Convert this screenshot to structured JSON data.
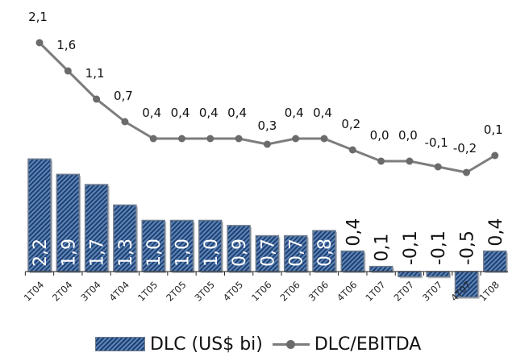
{
  "chart_data": {
    "type": "bar+line",
    "categories": [
      "1T04",
      "2T04",
      "3T04",
      "4T04",
      "1T05",
      "2T05",
      "3T05",
      "4T05",
      "1T06",
      "2T06",
      "3T06",
      "4T06",
      "1T07",
      "2T07",
      "3T07",
      "4T07",
      "1T08"
    ],
    "series": [
      {
        "name": "DLC (US$ bi)",
        "kind": "bar",
        "values": [
          2.2,
          1.9,
          1.7,
          1.3,
          1.0,
          1.0,
          1.0,
          0.9,
          0.7,
          0.7,
          0.8,
          0.4,
          0.1,
          -0.1,
          -0.1,
          -0.5,
          0.4
        ],
        "labels": [
          "2,2",
          "1,9",
          "1,7",
          "1,3",
          "1,0",
          "1,0",
          "1,0",
          "0,9",
          "0,7",
          "0,7",
          "0,8",
          "0,4",
          "0,1",
          "-0,1",
          "-0,1",
          "-0,5",
          "0,4"
        ],
        "color": "#2d5287"
      },
      {
        "name": "DLC/EBITDA",
        "kind": "line",
        "values": [
          2.1,
          1.6,
          1.1,
          0.7,
          0.4,
          0.4,
          0.4,
          0.4,
          0.3,
          0.4,
          0.4,
          0.2,
          0.0,
          0.0,
          -0.1,
          -0.2,
          0.1
        ],
        "labels": [
          "2,1",
          "1,6",
          "1,1",
          "0,7",
          "0,4",
          "0,4",
          "0,4",
          "0,4",
          "0,3",
          "0,4",
          "0,4",
          "0,2",
          "0,0",
          "0,0",
          "-0,1",
          "-0,2",
          "0,1"
        ],
        "color": "#7d7d7d"
      }
    ],
    "legend_position": "bottom",
    "grid": false
  }
}
